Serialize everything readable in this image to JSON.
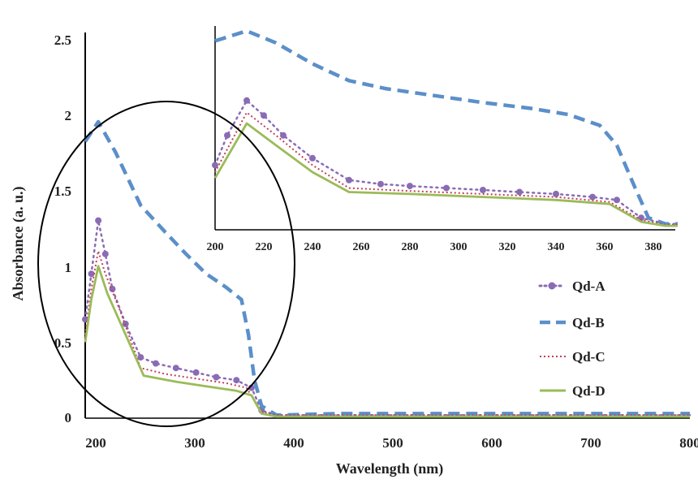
{
  "chart_data": [
    {
      "type": "line",
      "title": "",
      "xlabel": "Wavelength (nm)",
      "ylabel": "Absorbance (a. u.)",
      "xlim": [
        200,
        800
      ],
      "ylim": [
        0,
        2.5
      ],
      "x_ticks": [
        "200",
        "300",
        "400",
        "500",
        "600",
        "700",
        "800"
      ],
      "y_ticks": [
        "0",
        "0.5",
        "1",
        "1.5",
        "2",
        "2.5"
      ],
      "legend_position": "right",
      "series": [
        {
          "name": "Qd-A",
          "color": "#8a6bb5",
          "style": "dotted-markers",
          "points": [
            [
              200,
              0.65
            ],
            [
              206,
              0.95
            ],
            [
              213,
              1.3
            ],
            [
              220,
              1.08
            ],
            [
              227,
              0.85
            ],
            [
              240,
              0.62
            ],
            [
              255,
              0.4
            ],
            [
              270,
              0.36
            ],
            [
              290,
              0.33
            ],
            [
              310,
              0.3
            ],
            [
              330,
              0.27
            ],
            [
              350,
              0.25
            ],
            [
              365,
              0.2
            ],
            [
              375,
              0.05
            ],
            [
              390,
              0.02
            ],
            [
              500,
              0.02
            ],
            [
              600,
              0.02
            ],
            [
              700,
              0.02
            ],
            [
              800,
              0.02
            ]
          ]
        },
        {
          "name": "Qd-B",
          "color": "#5b8fc9",
          "style": "dashed",
          "points": [
            [
              200,
              1.82
            ],
            [
              213,
              1.95
            ],
            [
              230,
              1.75
            ],
            [
              255,
              1.4
            ],
            [
              280,
              1.22
            ],
            [
              300,
              1.08
            ],
            [
              320,
              0.95
            ],
            [
              340,
              0.86
            ],
            [
              355,
              0.78
            ],
            [
              362,
              0.55
            ],
            [
              368,
              0.25
            ],
            [
              375,
              0.08
            ],
            [
              390,
              0.02
            ],
            [
              450,
              0.03
            ],
            [
              500,
              0.03
            ],
            [
              600,
              0.03
            ],
            [
              700,
              0.03
            ],
            [
              800,
              0.03
            ]
          ]
        },
        {
          "name": "Qd-C",
          "color": "#c0405a",
          "style": "dotted",
          "points": [
            [
              200,
              0.55
            ],
            [
              206,
              0.85
            ],
            [
              213,
              1.1
            ],
            [
              220,
              0.95
            ],
            [
              235,
              0.7
            ],
            [
              255,
              0.33
            ],
            [
              280,
              0.29
            ],
            [
              310,
              0.26
            ],
            [
              340,
              0.23
            ],
            [
              360,
              0.2
            ],
            [
              375,
              0.04
            ],
            [
              390,
              0.02
            ],
            [
              500,
              0.02
            ],
            [
              600,
              0.02
            ],
            [
              700,
              0.02
            ],
            [
              800,
              0.02
            ]
          ]
        },
        {
          "name": "Qd-D",
          "color": "#9bbb59",
          "style": "solid",
          "points": [
            [
              200,
              0.5
            ],
            [
              206,
              0.78
            ],
            [
              213,
              1.0
            ],
            [
              222,
              0.82
            ],
            [
              240,
              0.55
            ],
            [
              258,
              0.28
            ],
            [
              290,
              0.24
            ],
            [
              320,
              0.21
            ],
            [
              350,
              0.18
            ],
            [
              365,
              0.15
            ],
            [
              375,
              0.03
            ],
            [
              390,
              0.01
            ],
            [
              500,
              0.01
            ],
            [
              600,
              0.01
            ],
            [
              700,
              0.01
            ],
            [
              800,
              0.01
            ]
          ]
        }
      ]
    },
    {
      "type": "line",
      "title": "",
      "xlabel": "",
      "ylabel": "",
      "xlim": [
        200,
        390
      ],
      "ylim": [
        0,
        2.05
      ],
      "x_ticks": [
        "200",
        "220",
        "240",
        "260",
        "280",
        "300",
        "320",
        "340",
        "360",
        "380"
      ],
      "inset": true,
      "series": [
        {
          "name": "Qd-A",
          "color": "#8a6bb5",
          "style": "dotted-markers",
          "points": [
            [
              200,
              0.65
            ],
            [
              205,
              0.95
            ],
            [
              213,
              1.3
            ],
            [
              220,
              1.15
            ],
            [
              228,
              0.95
            ],
            [
              240,
              0.72
            ],
            [
              255,
              0.5
            ],
            [
              268,
              0.46
            ],
            [
              280,
              0.44
            ],
            [
              295,
              0.42
            ],
            [
              310,
              0.4
            ],
            [
              325,
              0.38
            ],
            [
              340,
              0.36
            ],
            [
              355,
              0.33
            ],
            [
              365,
              0.3
            ],
            [
              375,
              0.12
            ],
            [
              385,
              0.06
            ],
            [
              390,
              0.06
            ]
          ]
        },
        {
          "name": "Qd-B",
          "color": "#5b8fc9",
          "style": "dashed",
          "points": [
            [
              200,
              1.9
            ],
            [
              213,
              2.0
            ],
            [
              225,
              1.88
            ],
            [
              240,
              1.67
            ],
            [
              255,
              1.5
            ],
            [
              270,
              1.42
            ],
            [
              290,
              1.35
            ],
            [
              310,
              1.28
            ],
            [
              330,
              1.22
            ],
            [
              345,
              1.16
            ],
            [
              358,
              1.05
            ],
            [
              365,
              0.85
            ],
            [
              372,
              0.45
            ],
            [
              378,
              0.12
            ],
            [
              385,
              0.06
            ],
            [
              390,
              0.06
            ]
          ]
        },
        {
          "name": "Qd-C",
          "color": "#c0405a",
          "style": "dotted",
          "points": [
            [
              200,
              0.58
            ],
            [
              213,
              1.18
            ],
            [
              225,
              0.95
            ],
            [
              240,
              0.65
            ],
            [
              255,
              0.42
            ],
            [
              280,
              0.39
            ],
            [
              310,
              0.36
            ],
            [
              340,
              0.33
            ],
            [
              362,
              0.28
            ],
            [
              375,
              0.1
            ],
            [
              385,
              0.05
            ],
            [
              390,
              0.05
            ]
          ]
        },
        {
          "name": "Qd-D",
          "color": "#9bbb59",
          "style": "solid",
          "points": [
            [
              200,
              0.52
            ],
            [
              213,
              1.07
            ],
            [
              225,
              0.85
            ],
            [
              240,
              0.58
            ],
            [
              255,
              0.38
            ],
            [
              280,
              0.36
            ],
            [
              310,
              0.33
            ],
            [
              340,
              0.3
            ],
            [
              362,
              0.26
            ],
            [
              375,
              0.08
            ],
            [
              385,
              0.04
            ],
            [
              390,
              0.04
            ]
          ]
        }
      ]
    }
  ]
}
